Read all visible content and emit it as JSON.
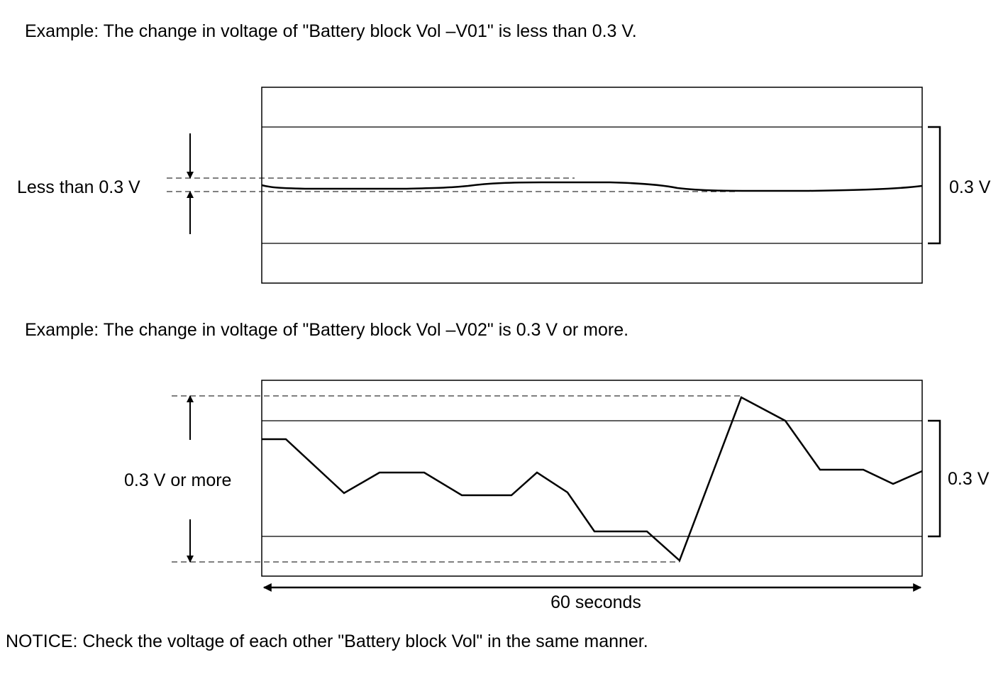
{
  "examples": [
    {
      "heading": "Example: The change in voltage of \"Battery block Vol –V01\" is less than 0.3 V.",
      "left_label": "Less than 0.3 V",
      "right_label": "0.3 V"
    },
    {
      "heading": "Example: The change in voltage of \"Battery block Vol –V02\" is 0.3 V or more.",
      "left_label": "0.3 V or more",
      "right_label": "0.3 V"
    }
  ],
  "time_axis_label": "60 seconds",
  "notice": "NOTICE: Check the voltage of each other \"Battery block Vol\" in the same manner."
}
